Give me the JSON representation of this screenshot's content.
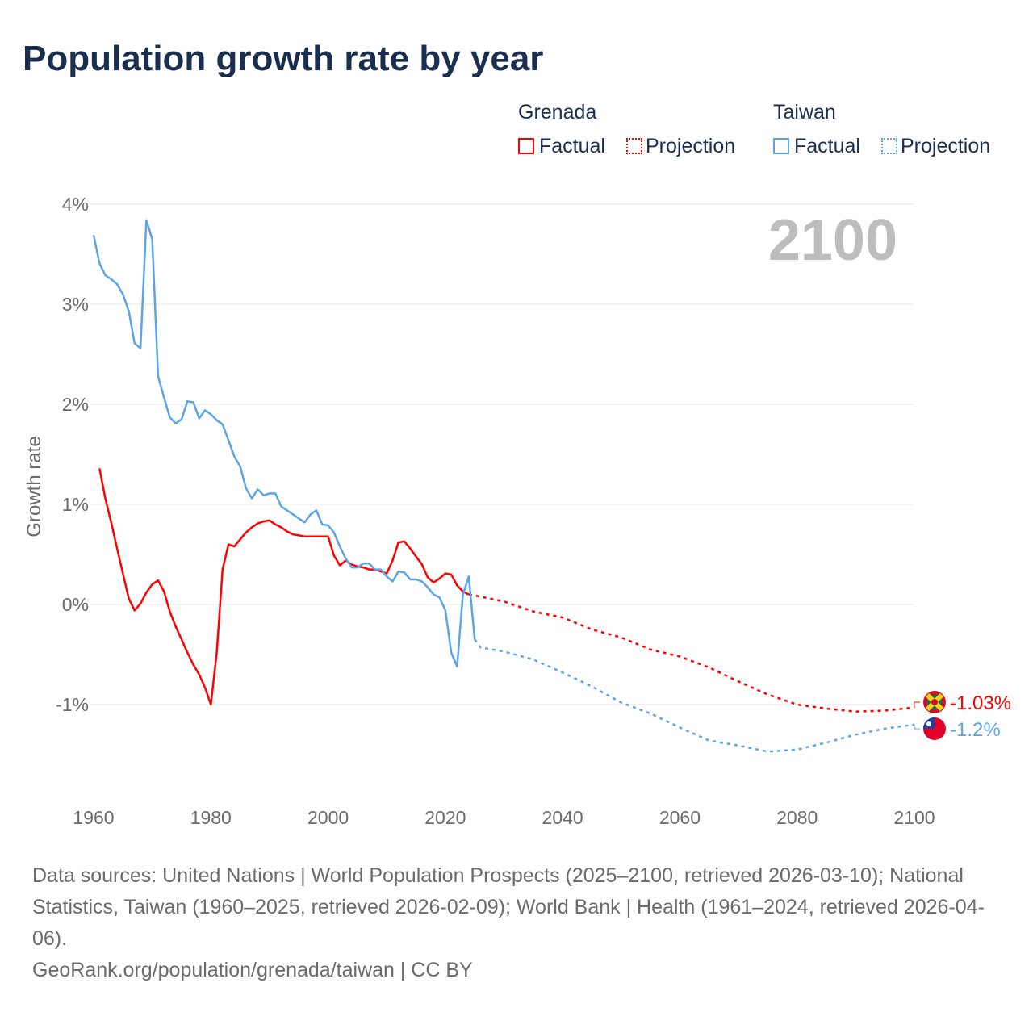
{
  "title": "Population growth rate by year",
  "legend": {
    "groups": [
      {
        "name": "Grenada",
        "color": "#ff0000",
        "factual": "Factual",
        "projection": "Projection"
      },
      {
        "name": "Taiwan",
        "color": "#5ba4ea",
        "factual": "Factual",
        "projection": "Projection"
      }
    ]
  },
  "chart_data": {
    "type": "line",
    "title": "Population growth rate by year",
    "ylabel": "Growth rate",
    "xlabel": "",
    "xlim": [
      1960,
      2100
    ],
    "ylim": [
      -1.9,
      4
    ],
    "xticks": [
      "1960",
      "1980",
      "2000",
      "2020",
      "2040",
      "2060",
      "2080",
      "2100"
    ],
    "xtick_values": [
      1960,
      1980,
      2000,
      2020,
      2040,
      2060,
      2080,
      2100
    ],
    "yticks": [
      "4%",
      "3%",
      "2%",
      "1%",
      "0%",
      "-1%"
    ],
    "ytick_values": [
      4,
      3,
      2,
      1,
      0,
      -1
    ],
    "year_label": "2100",
    "series": [
      {
        "name": "Grenada",
        "kind": "Factual",
        "color": "#ff0000",
        "x": [
          1961,
          1962,
          1963,
          1964,
          1965,
          1966,
          1967,
          1968,
          1969,
          1970,
          1971,
          1972,
          1973,
          1974,
          1975,
          1976,
          1977,
          1978,
          1979,
          1980,
          1981,
          1982,
          1983,
          1984,
          1985,
          1986,
          1987,
          1988,
          1989,
          1990,
          1991,
          1992,
          1993,
          1994,
          1995,
          1996,
          1997,
          1998,
          1999,
          2000,
          2001,
          2002,
          2003,
          2004,
          2005,
          2006,
          2007,
          2008,
          2009,
          2010,
          2011,
          2012,
          2013,
          2014,
          2015,
          2016,
          2017,
          2018,
          2019,
          2020,
          2021,
          2022,
          2023,
          2024
        ],
        "y": [
          1.36,
          1.06,
          0.82,
          0.56,
          0.31,
          0.06,
          -0.06,
          0.01,
          0.12,
          0.2,
          0.24,
          0.13,
          -0.07,
          -0.22,
          -0.35,
          -0.48,
          -0.6,
          -0.7,
          -0.83,
          -1.0,
          -0.48,
          0.35,
          0.6,
          0.58,
          0.65,
          0.72,
          0.77,
          0.81,
          0.83,
          0.84,
          0.8,
          0.77,
          0.73,
          0.7,
          0.69,
          0.68,
          0.68,
          0.68,
          0.68,
          0.68,
          0.49,
          0.39,
          0.44,
          0.4,
          0.38,
          0.37,
          0.35,
          0.35,
          0.33,
          0.31,
          0.44,
          0.62,
          0.63,
          0.56,
          0.48,
          0.4,
          0.27,
          0.22,
          0.26,
          0.31,
          0.3,
          0.19,
          0.13,
          0.1
        ]
      },
      {
        "name": "Grenada",
        "kind": "Projection",
        "color": "#ff0000",
        "x": [
          2024,
          2025,
          2030,
          2035,
          2040,
          2045,
          2050,
          2055,
          2060,
          2065,
          2070,
          2075,
          2080,
          2085,
          2090,
          2095,
          2100
        ],
        "y": [
          0.1,
          0.09,
          0.03,
          -0.07,
          -0.13,
          -0.25,
          -0.33,
          -0.45,
          -0.52,
          -0.63,
          -0.77,
          -0.9,
          -1.0,
          -1.04,
          -1.07,
          -1.06,
          -1.03
        ]
      },
      {
        "name": "Taiwan",
        "kind": "Factual",
        "color": "#5ba4ea",
        "x": [
          1960,
          1961,
          1962,
          1963,
          1964,
          1965,
          1966,
          1967,
          1968,
          1969,
          1970,
          1971,
          1972,
          1973,
          1974,
          1975,
          1976,
          1977,
          1978,
          1979,
          1980,
          1981,
          1982,
          1983,
          1984,
          1985,
          1986,
          1987,
          1988,
          1989,
          1990,
          1991,
          1992,
          1993,
          1994,
          1995,
          1996,
          1997,
          1998,
          1999,
          2000,
          2001,
          2002,
          2003,
          2004,
          2005,
          2006,
          2007,
          2008,
          2009,
          2010,
          2011,
          2012,
          2013,
          2014,
          2015,
          2016,
          2017,
          2018,
          2019,
          2020,
          2021,
          2022,
          2023,
          2024,
          2025
        ],
        "y": [
          3.69,
          3.41,
          3.29,
          3.25,
          3.2,
          3.1,
          2.93,
          2.61,
          2.56,
          3.84,
          3.65,
          2.28,
          2.07,
          1.87,
          1.81,
          1.85,
          2.03,
          2.02,
          1.86,
          1.94,
          1.9,
          1.84,
          1.8,
          1.64,
          1.48,
          1.38,
          1.16,
          1.06,
          1.15,
          1.09,
          1.11,
          1.11,
          0.98,
          0.94,
          0.9,
          0.86,
          0.82,
          0.9,
          0.94,
          0.8,
          0.79,
          0.72,
          0.58,
          0.46,
          0.37,
          0.37,
          0.41,
          0.41,
          0.35,
          0.35,
          0.28,
          0.23,
          0.33,
          0.32,
          0.25,
          0.25,
          0.23,
          0.17,
          0.1,
          0.07,
          -0.06,
          -0.48,
          -0.62,
          0.1,
          0.28,
          -0.35
        ]
      },
      {
        "name": "Taiwan",
        "kind": "Projection",
        "color": "#5ba4ea",
        "x": [
          2025,
          2026,
          2030,
          2035,
          2040,
          2045,
          2050,
          2055,
          2060,
          2065,
          2070,
          2075,
          2080,
          2085,
          2090,
          2095,
          2100
        ],
        "y": [
          -0.35,
          -0.43,
          -0.47,
          -0.55,
          -0.68,
          -0.82,
          -0.98,
          -1.09,
          -1.23,
          -1.36,
          -1.41,
          -1.47,
          -1.45,
          -1.38,
          -1.3,
          -1.24,
          -1.2
        ]
      }
    ],
    "end_labels": [
      {
        "country": "Grenada",
        "value": -1.03,
        "label": "-1.03%",
        "color": "#ff0000"
      },
      {
        "country": "Taiwan",
        "value": -1.2,
        "label": "-1.2%",
        "color": "#5ba4ea"
      }
    ],
    "grid": true,
    "legend_position": "top-right"
  },
  "footer": {
    "sources": "Data sources: United Nations | World Population Prospects (2025–2100, retrieved 2026-03-10); National Statistics, Taiwan (1960–2025, retrieved 2026-02-09); World Bank | Health (1961–2024, retrieved 2026-04-06).",
    "credit": "GeoRank.org/population/grenada/taiwan | CC BY"
  }
}
